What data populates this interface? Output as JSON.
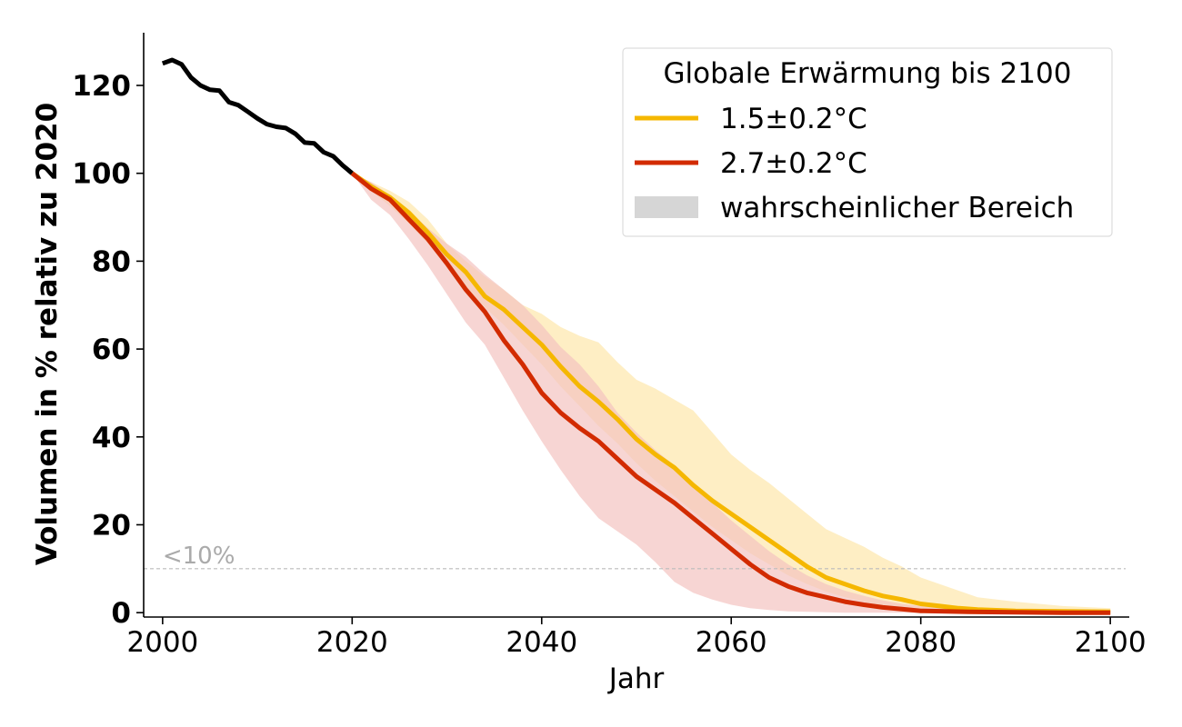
{
  "chart_data": {
    "type": "line",
    "xlabel": "Jahr",
    "ylabel": "Volumen in % relativ zu 2020",
    "xlim": [
      1998,
      2102
    ],
    "ylim": [
      -1,
      132
    ],
    "x_ticks": [
      2000,
      2020,
      2040,
      2060,
      2080,
      2100
    ],
    "x_tick_labels": [
      "2000",
      "2020",
      "2040",
      "2060",
      "2080",
      "2100"
    ],
    "y_ticks": [
      0,
      20,
      40,
      60,
      80,
      100,
      120
    ],
    "y_tick_labels": [
      "0",
      "20",
      "40",
      "60",
      "80",
      "100",
      "120"
    ],
    "grid": false,
    "historical": {
      "color": "#000000",
      "x": [
        2000,
        2001,
        2002,
        2003,
        2004,
        2005,
        2006,
        2007,
        2008,
        2009,
        2010,
        2011,
        2012,
        2013,
        2014,
        2015,
        2016,
        2017,
        2018,
        2019,
        2020
      ],
      "y": [
        125,
        125.8,
        124.8,
        121.8,
        120,
        119,
        118.8,
        116.2,
        115.5,
        114,
        112.5,
        111.2,
        110.6,
        110.3,
        109,
        107,
        106.8,
        104.8,
        103.9,
        101.8,
        100
      ]
    },
    "series": [
      {
        "name": "1.5±0.2°C",
        "color": "#f5b700",
        "band_color": "#fde8b0",
        "x": [
          2020,
          2022,
          2024,
          2026,
          2028,
          2030,
          2032,
          2034,
          2036,
          2038,
          2040,
          2042,
          2044,
          2046,
          2048,
          2050,
          2052,
          2054,
          2056,
          2058,
          2060,
          2062,
          2064,
          2066,
          2068,
          2070,
          2072,
          2074,
          2076,
          2078,
          2080,
          2082,
          2084,
          2086,
          2090,
          2095,
          2100
        ],
        "y": [
          100,
          97,
          94.5,
          91,
          86.5,
          81.5,
          77.5,
          72,
          69,
          65,
          61,
          56,
          51.5,
          48,
          44,
          39.5,
          36,
          33,
          29,
          25.5,
          22.5,
          19.5,
          16.5,
          13.5,
          10.5,
          8,
          6.5,
          5,
          3.8,
          3,
          2,
          1.5,
          1,
          0.7,
          0.4,
          0.3,
          0.2
        ],
        "lower": [
          100,
          96,
          92.5,
          88.5,
          84,
          79,
          74,
          69.5,
          65.5,
          61,
          56.5,
          51.5,
          47,
          42.5,
          38.5,
          34,
          30,
          26.5,
          23,
          19.5,
          16.5,
          13.5,
          11,
          8.5,
          6.5,
          4.8,
          3.5,
          2.5,
          1.6,
          1,
          0.6,
          0.3,
          0.2,
          0.1,
          0,
          0,
          0
        ],
        "upper": [
          100,
          98,
          96,
          93.5,
          89.5,
          84,
          80,
          76.5,
          73.5,
          70,
          68,
          65,
          63,
          61.5,
          57,
          53,
          51,
          48.5,
          46,
          41,
          36,
          32.5,
          29.5,
          26,
          22.5,
          19,
          17,
          15,
          12.5,
          10.5,
          8,
          6.5,
          5,
          3.5,
          2.5,
          1.5,
          1
        ]
      },
      {
        "name": "2.7±0.2°C",
        "color": "#d22b00",
        "band_color": "#f4c3c0",
        "x": [
          2020,
          2022,
          2024,
          2026,
          2028,
          2030,
          2032,
          2034,
          2036,
          2038,
          2040,
          2042,
          2044,
          2046,
          2048,
          2050,
          2052,
          2054,
          2056,
          2058,
          2060,
          2062,
          2064,
          2066,
          2068,
          2070,
          2072,
          2074,
          2076,
          2078,
          2080,
          2085,
          2090,
          2095,
          2100
        ],
        "y": [
          100,
          96.5,
          94,
          89.5,
          85,
          79.5,
          73.5,
          68.5,
          62,
          56.5,
          50,
          45.5,
          42,
          39,
          35,
          31,
          28,
          25,
          21.5,
          18,
          14.5,
          11,
          8,
          6,
          4.5,
          3.5,
          2.5,
          1.8,
          1.2,
          0.8,
          0.4,
          0.2,
          0.1,
          0,
          0
        ],
        "lower": [
          100,
          94,
          90.5,
          85,
          79,
          72.5,
          66,
          61,
          53.5,
          46,
          39,
          32.5,
          26.5,
          21.5,
          18.5,
          15.5,
          11.5,
          7,
          4.5,
          3,
          1.8,
          1,
          0.6,
          0.3,
          0.2,
          0.1,
          0,
          0,
          0,
          0,
          0,
          0,
          0,
          0,
          0
        ],
        "upper": [
          100,
          98,
          95,
          91.5,
          87.5,
          84,
          81,
          77,
          73.5,
          70,
          65.5,
          60.5,
          56.5,
          51.5,
          45.5,
          41,
          37,
          33.5,
          29.5,
          25,
          21,
          17.5,
          14,
          11,
          8.5,
          6.5,
          5,
          3.8,
          2.8,
          2,
          1.5,
          0.9,
          0.5,
          0.3,
          0.2
        ]
      }
    ],
    "reference_line": {
      "y": 10,
      "label": "<10%",
      "color": "#bbbbbb"
    },
    "legend": {
      "title": "Globale Erwärmung bis 2100",
      "position": "top-right",
      "entries": [
        {
          "label": "1.5±0.2°C",
          "kind": "line",
          "color": "#f5b700"
        },
        {
          "label": "2.7±0.2°C",
          "kind": "line",
          "color": "#d22b00"
        },
        {
          "label": "wahrscheinlicher Bereich",
          "kind": "patch",
          "color": "#d6d6d6"
        }
      ]
    }
  }
}
